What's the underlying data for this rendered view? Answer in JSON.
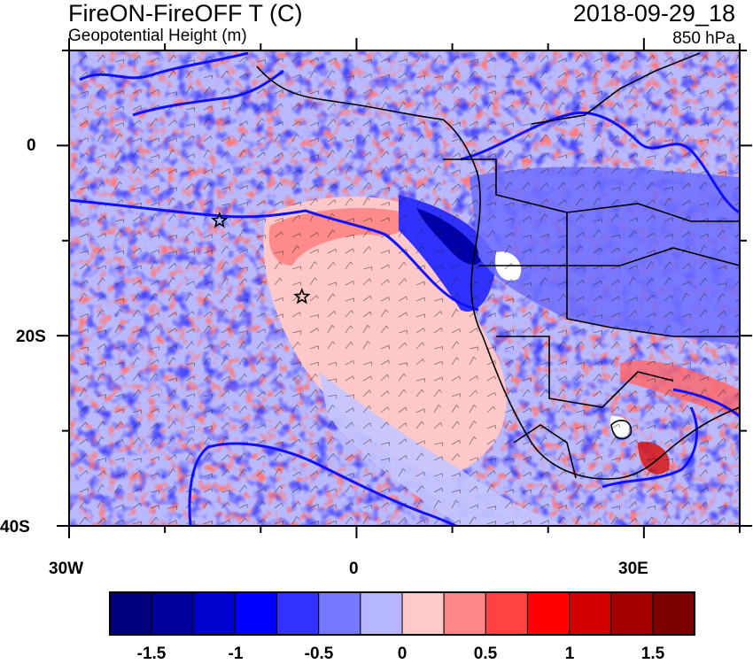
{
  "header": {
    "title": "FireON-FireOFF T (C)",
    "subtitle": "Geopotential Height (m)",
    "datetime": "2018-09-29_18",
    "level": "850 hPa"
  },
  "map": {
    "region": "South Atlantic / Southern Africa",
    "lat_range": [
      -40,
      10
    ],
    "lon_range": [
      -30,
      40
    ],
    "y_ticks": [
      {
        "lat": 0,
        "label": "0"
      },
      {
        "lat": -20,
        "label": "20S"
      },
      {
        "lat": -40,
        "label": "40S"
      }
    ],
    "x_ticks": [
      {
        "lon": -30,
        "label": "30W"
      },
      {
        "lon": 0,
        "label": "0"
      },
      {
        "lon": 30,
        "label": "30E"
      }
    ],
    "markers": [
      {
        "name": "star-marker-west",
        "lon": -14.3,
        "lat": -7.9
      },
      {
        "name": "star-marker-ascension",
        "lon": -5.7,
        "lat": -15.9
      }
    ]
  },
  "colorbar": {
    "colors": [
      "#00007f",
      "#00009f",
      "#0000cf",
      "#0000ff",
      "#3333ff",
      "#7777ff",
      "#b6b6ff",
      "#ffc9c9",
      "#ff8686",
      "#ff4242",
      "#ff0000",
      "#d20000",
      "#a50000",
      "#7d0000"
    ],
    "labels": [
      {
        "value": -1.5,
        "text": "-1.5"
      },
      {
        "value": -1,
        "text": "-1"
      },
      {
        "value": -0.5,
        "text": "-0.5"
      },
      {
        "value": 0,
        "text": "0"
      },
      {
        "value": 0.5,
        "text": "0.5"
      },
      {
        "value": 1,
        "text": "1"
      },
      {
        "value": 1.5,
        "text": "1.5"
      }
    ]
  }
}
